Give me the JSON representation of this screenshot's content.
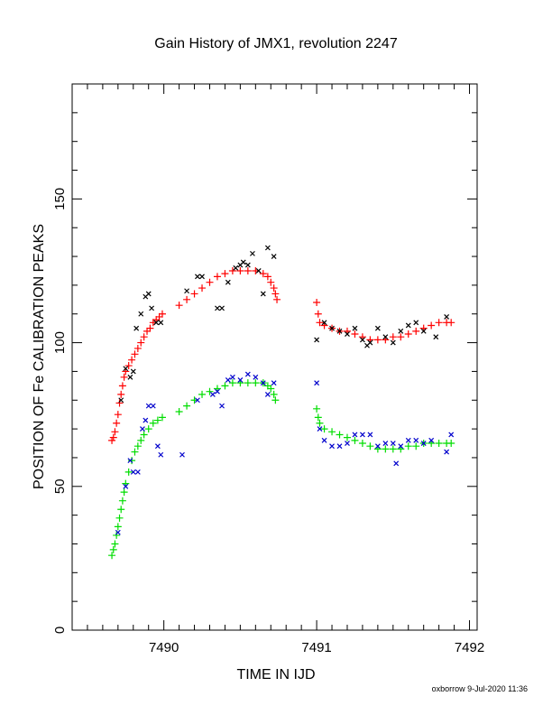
{
  "chart_data": {
    "type": "scatter",
    "title": "Gain History of JMX1, revolution 2247",
    "xlabel": "TIME IN IJD",
    "ylabel": "POSITION OF Fe CALIBRATION PEAKS",
    "xlim": [
      7489.4,
      7492.05
    ],
    "ylim": [
      0,
      190
    ],
    "x_ticks": [
      7490,
      7491,
      7492
    ],
    "y_ticks": [
      0,
      50,
      100,
      150
    ],
    "grid": false,
    "credit": "oxborrow  9-Jul-2020 11:36",
    "series": [
      {
        "marker": "plus",
        "color": "#ff0000",
        "points": [
          [
            7489.66,
            66
          ],
          [
            7489.67,
            67
          ],
          [
            7489.68,
            69
          ],
          [
            7489.69,
            72
          ],
          [
            7489.7,
            75
          ],
          [
            7489.71,
            79
          ],
          [
            7489.72,
            82
          ],
          [
            7489.73,
            85
          ],
          [
            7489.74,
            88
          ],
          [
            7489.75,
            90
          ],
          [
            7489.77,
            92
          ],
          [
            7489.79,
            94
          ],
          [
            7489.81,
            96
          ],
          [
            7489.83,
            98
          ],
          [
            7489.85,
            100
          ],
          [
            7489.87,
            102
          ],
          [
            7489.89,
            104
          ],
          [
            7489.91,
            105
          ],
          [
            7489.93,
            107
          ],
          [
            7489.95,
            108
          ],
          [
            7489.97,
            109
          ],
          [
            7489.99,
            110
          ],
          [
            7490.1,
            113
          ],
          [
            7490.15,
            115
          ],
          [
            7490.2,
            117
          ],
          [
            7490.25,
            119
          ],
          [
            7490.3,
            121
          ],
          [
            7490.35,
            123
          ],
          [
            7490.4,
            124
          ],
          [
            7490.45,
            125
          ],
          [
            7490.5,
            125
          ],
          [
            7490.55,
            125
          ],
          [
            7490.6,
            125
          ],
          [
            7490.65,
            124
          ],
          [
            7490.68,
            123
          ],
          [
            7490.7,
            121
          ],
          [
            7490.72,
            119
          ],
          [
            7490.73,
            117
          ],
          [
            7490.74,
            115
          ],
          [
            7491.0,
            114
          ],
          [
            7491.01,
            110
          ],
          [
            7491.02,
            107
          ],
          [
            7491.05,
            106
          ],
          [
            7491.1,
            105
          ],
          [
            7491.15,
            104
          ],
          [
            7491.2,
            104
          ],
          [
            7491.25,
            103
          ],
          [
            7491.3,
            102
          ],
          [
            7491.35,
            101
          ],
          [
            7491.4,
            101
          ],
          [
            7491.45,
            101
          ],
          [
            7491.5,
            102
          ],
          [
            7491.55,
            102
          ],
          [
            7491.6,
            103
          ],
          [
            7491.65,
            104
          ],
          [
            7491.7,
            105
          ],
          [
            7491.75,
            106
          ],
          [
            7491.8,
            107
          ],
          [
            7491.85,
            107
          ],
          [
            7491.88,
            107
          ]
        ]
      },
      {
        "marker": "cross",
        "color": "#000000",
        "points": [
          [
            7489.72,
            80
          ],
          [
            7489.75,
            91
          ],
          [
            7489.78,
            88
          ],
          [
            7489.8,
            90
          ],
          [
            7489.82,
            105
          ],
          [
            7489.85,
            110
          ],
          [
            7489.88,
            116
          ],
          [
            7489.9,
            117
          ],
          [
            7489.92,
            112
          ],
          [
            7489.95,
            107
          ],
          [
            7489.98,
            107
          ],
          [
            7490.15,
            118
          ],
          [
            7490.22,
            123
          ],
          [
            7490.25,
            123
          ],
          [
            7490.35,
            112
          ],
          [
            7490.38,
            112
          ],
          [
            7490.42,
            121
          ],
          [
            7490.47,
            126
          ],
          [
            7490.5,
            127
          ],
          [
            7490.52,
            128
          ],
          [
            7490.55,
            127
          ],
          [
            7490.58,
            131
          ],
          [
            7490.62,
            125
          ],
          [
            7490.65,
            117
          ],
          [
            7490.68,
            133
          ],
          [
            7490.72,
            130
          ],
          [
            7491.0,
            101
          ],
          [
            7491.05,
            107
          ],
          [
            7491.1,
            105
          ],
          [
            7491.15,
            104
          ],
          [
            7491.2,
            103
          ],
          [
            7491.25,
            105
          ],
          [
            7491.3,
            101
          ],
          [
            7491.33,
            99
          ],
          [
            7491.35,
            100
          ],
          [
            7491.4,
            105
          ],
          [
            7491.45,
            102
          ],
          [
            7491.5,
            100
          ],
          [
            7491.55,
            104
          ],
          [
            7491.6,
            106
          ],
          [
            7491.65,
            107
          ],
          [
            7491.7,
            104
          ],
          [
            7491.78,
            102
          ],
          [
            7491.85,
            109
          ]
        ]
      },
      {
        "marker": "plus",
        "color": "#00dd00",
        "points": [
          [
            7489.66,
            26
          ],
          [
            7489.67,
            28
          ],
          [
            7489.68,
            30
          ],
          [
            7489.69,
            33
          ],
          [
            7489.7,
            36
          ],
          [
            7489.71,
            39
          ],
          [
            7489.72,
            42
          ],
          [
            7489.73,
            45
          ],
          [
            7489.74,
            48
          ],
          [
            7489.75,
            51
          ],
          [
            7489.77,
            55
          ],
          [
            7489.79,
            59
          ],
          [
            7489.81,
            62
          ],
          [
            7489.83,
            64
          ],
          [
            7489.85,
            66
          ],
          [
            7489.87,
            68
          ],
          [
            7489.9,
            70
          ],
          [
            7489.93,
            72
          ],
          [
            7489.96,
            73
          ],
          [
            7489.99,
            74
          ],
          [
            7490.1,
            76
          ],
          [
            7490.15,
            78
          ],
          [
            7490.2,
            80
          ],
          [
            7490.25,
            82
          ],
          [
            7490.3,
            83
          ],
          [
            7490.35,
            84
          ],
          [
            7490.4,
            85
          ],
          [
            7490.45,
            86
          ],
          [
            7490.5,
            86
          ],
          [
            7490.55,
            86
          ],
          [
            7490.6,
            86
          ],
          [
            7490.65,
            86
          ],
          [
            7490.68,
            85
          ],
          [
            7490.7,
            84
          ],
          [
            7490.72,
            82
          ],
          [
            7490.73,
            80
          ],
          [
            7491.0,
            77
          ],
          [
            7491.01,
            74
          ],
          [
            7491.02,
            72
          ],
          [
            7491.05,
            70
          ],
          [
            7491.1,
            69
          ],
          [
            7491.15,
            68
          ],
          [
            7491.2,
            67
          ],
          [
            7491.25,
            66
          ],
          [
            7491.3,
            65
          ],
          [
            7491.35,
            64
          ],
          [
            7491.4,
            63
          ],
          [
            7491.45,
            63
          ],
          [
            7491.5,
            63
          ],
          [
            7491.55,
            63
          ],
          [
            7491.6,
            64
          ],
          [
            7491.65,
            64
          ],
          [
            7491.7,
            65
          ],
          [
            7491.75,
            65
          ],
          [
            7491.8,
            65
          ],
          [
            7491.85,
            65
          ],
          [
            7491.88,
            65
          ]
        ]
      },
      {
        "marker": "cross",
        "color": "#0000cc",
        "points": [
          [
            7489.7,
            34
          ],
          [
            7489.75,
            50
          ],
          [
            7489.78,
            59
          ],
          [
            7489.8,
            55
          ],
          [
            7489.83,
            55
          ],
          [
            7489.86,
            70
          ],
          [
            7489.88,
            73
          ],
          [
            7489.9,
            78
          ],
          [
            7489.93,
            78
          ],
          [
            7489.96,
            64
          ],
          [
            7489.98,
            61
          ],
          [
            7490.12,
            61
          ],
          [
            7490.22,
            80
          ],
          [
            7490.32,
            82
          ],
          [
            7490.35,
            83
          ],
          [
            7490.38,
            78
          ],
          [
            7490.42,
            87
          ],
          [
            7490.45,
            88
          ],
          [
            7490.5,
            87
          ],
          [
            7490.55,
            89
          ],
          [
            7490.6,
            88
          ],
          [
            7490.65,
            86
          ],
          [
            7490.68,
            82
          ],
          [
            7490.72,
            86
          ],
          [
            7491.0,
            86
          ],
          [
            7491.02,
            70
          ],
          [
            7491.05,
            66
          ],
          [
            7491.1,
            64
          ],
          [
            7491.15,
            64
          ],
          [
            7491.2,
            65
          ],
          [
            7491.25,
            68
          ],
          [
            7491.3,
            68
          ],
          [
            7491.35,
            68
          ],
          [
            7491.4,
            64
          ],
          [
            7491.45,
            65
          ],
          [
            7491.5,
            65
          ],
          [
            7491.52,
            58
          ],
          [
            7491.55,
            64
          ],
          [
            7491.6,
            66
          ],
          [
            7491.65,
            66
          ],
          [
            7491.7,
            65
          ],
          [
            7491.75,
            66
          ],
          [
            7491.85,
            62
          ],
          [
            7491.88,
            68
          ]
        ]
      }
    ]
  }
}
